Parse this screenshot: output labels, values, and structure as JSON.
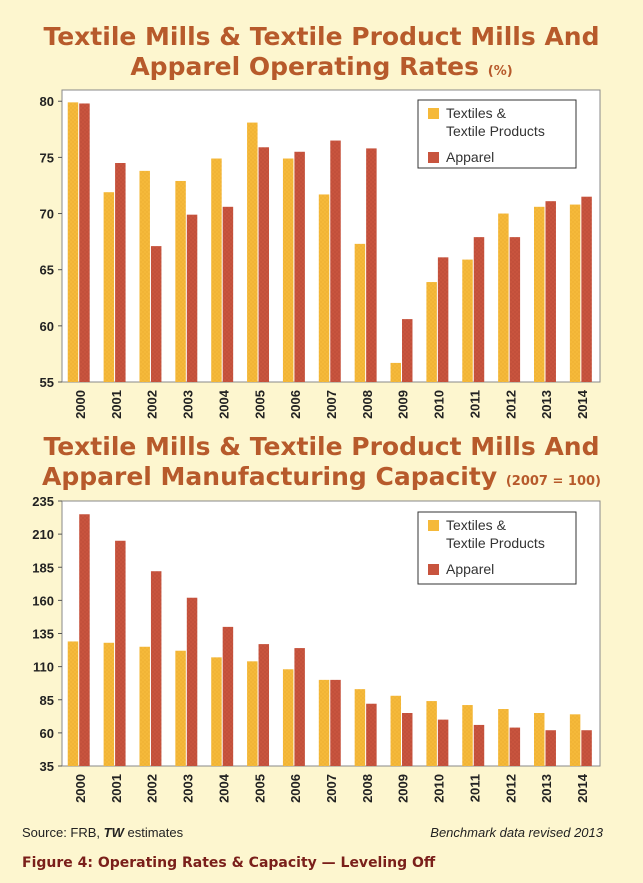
{
  "colors": {
    "textiles": "#f5b93a",
    "apparel": "#c8543e",
    "plot_bg": "#ffffff",
    "title": "#b75a2b",
    "caption": "#7a1f1a"
  },
  "chart_data": [
    {
      "type": "bar",
      "title": "Textile Mills & Textile Product Mills And Apparel Operating Rates",
      "title_line1": "Textile Mills & Textile Product Mills And",
      "title_line2": "Apparel Operating Rates",
      "title_unit": "(%)",
      "categories": [
        "2000",
        "2001",
        "2002",
        "2003",
        "2004",
        "2005",
        "2006",
        "2007",
        "2008",
        "2009",
        "2010",
        "2011",
        "2012",
        "2013",
        "2014"
      ],
      "series": [
        {
          "name": "Textiles & Textile Products",
          "legend_lines": [
            "Textiles &",
            "Textile Products"
          ],
          "values": [
            79.9,
            71.9,
            73.8,
            72.9,
            74.9,
            78.1,
            74.9,
            71.7,
            67.3,
            56.7,
            63.9,
            65.9,
            70.0,
            70.6,
            70.8
          ]
        },
        {
          "name": "Apparel",
          "legend_lines": [
            "Apparel"
          ],
          "values": [
            79.8,
            74.5,
            67.1,
            69.9,
            70.6,
            75.9,
            75.5,
            76.5,
            75.8,
            60.6,
            66.1,
            67.9,
            67.9,
            71.1,
            71.5
          ]
        }
      ],
      "yticks": [
        55,
        60,
        65,
        70,
        75,
        80
      ],
      "ylim": [
        55,
        81
      ],
      "legend_position": "top-right",
      "grid": false
    },
    {
      "type": "bar",
      "title": "Textile Mills & Textile Product Mills And Apparel Manufacturing Capacity",
      "title_line1": "Textile Mills & Textile Product Mills And",
      "title_line2": "Apparel Manufacturing Capacity",
      "title_unit": "(2007 = 100)",
      "categories": [
        "2000",
        "2001",
        "2002",
        "2003",
        "2004",
        "2005",
        "2006",
        "2007",
        "2008",
        "2009",
        "2010",
        "2011",
        "2012",
        "2013",
        "2014"
      ],
      "series": [
        {
          "name": "Textiles & Textile Products",
          "legend_lines": [
            "Textiles &",
            "Textile Products"
          ],
          "values": [
            129,
            128,
            125,
            122,
            117,
            114,
            108,
            100,
            93,
            88,
            84,
            81,
            78,
            75,
            74
          ]
        },
        {
          "name": "Apparel",
          "legend_lines": [
            "Apparel"
          ],
          "values": [
            225,
            205,
            182,
            162,
            140,
            127,
            124,
            100,
            82,
            75,
            70,
            66,
            64,
            62,
            62
          ]
        }
      ],
      "yticks": [
        35,
        60,
        85,
        110,
        135,
        160,
        185,
        210,
        235
      ],
      "ylim": [
        35,
        235
      ],
      "legend_position": "top-right",
      "grid": false
    }
  ],
  "footer": {
    "source_prefix": "Source: FRB, ",
    "source_italic": "TW",
    "source_suffix": " estimates",
    "note": "Benchmark data revised 2013"
  },
  "caption": "Figure 4:  Operating Rates & Capacity — Leveling Off"
}
